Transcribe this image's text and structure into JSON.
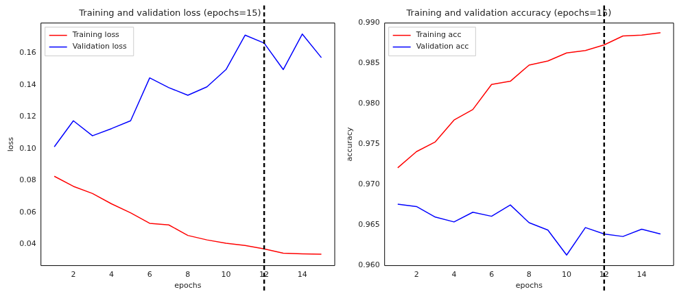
{
  "chart_data": [
    {
      "type": "line",
      "title": "Training and validation loss (epochs=15)",
      "xlabel": "epochs",
      "ylabel": "loss",
      "x": [
        1,
        2,
        3,
        4,
        5,
        6,
        7,
        8,
        9,
        10,
        11,
        12,
        13,
        14,
        15
      ],
      "xlim": [
        0.3,
        15.7
      ],
      "xticks": [
        2,
        4,
        6,
        8,
        10,
        12,
        14
      ],
      "ylim": [
        0.0266,
        0.1787
      ],
      "yticks": [
        0.04,
        0.06,
        0.08,
        {
          "value": 0.1,
          "label": "0.10"
        },
        {
          "value": 0.12,
          "label": "0.12"
        },
        0.14,
        0.16
      ],
      "grid": false,
      "legend": "top left",
      "marker": "none",
      "line_style": "solid",
      "series": [
        {
          "name": "Training loss",
          "color": "#ff0000",
          "values": [
            0.0826,
            0.0763,
            0.0718,
            0.0653,
            0.0597,
            0.0531,
            0.0521,
            0.0455,
            0.0427,
            0.0406,
            0.0392,
            0.0371,
            0.0344,
            0.034,
            0.0337
          ]
        },
        {
          "name": "Validation loss",
          "color": "#0000ff",
          "values": [
            0.1011,
            0.1174,
            0.108,
            0.1125,
            0.1174,
            0.1443,
            0.1382,
            0.1334,
            0.1387,
            0.1495,
            0.1711,
            0.1661,
            0.1495,
            0.1718,
            0.157
          ]
        }
      ],
      "ref_lines": [
        {
          "axis": "x",
          "value": 12,
          "color": "#000000",
          "line_style": "dashed"
        }
      ]
    },
    {
      "type": "line",
      "title": "Training and validation accuracy (epochs=15)",
      "xlabel": "epochs",
      "ylabel": "accuracy",
      "x": [
        1,
        2,
        3,
        4,
        5,
        6,
        7,
        8,
        9,
        10,
        11,
        12,
        13,
        14,
        15
      ],
      "xlim": [
        0.3,
        15.7
      ],
      "xticks": [
        2,
        4,
        6,
        8,
        10,
        12,
        14
      ],
      "ylim": [
        0.96,
        0.99
      ],
      "yticks": [
        {
          "value": 0.96,
          "label": "0.960"
        },
        0.965,
        {
          "value": 0.97,
          "label": "0.970"
        },
        0.975,
        {
          "value": 0.98,
          "label": "0.980"
        },
        0.985,
        {
          "value": 0.99,
          "label": "0.990"
        }
      ],
      "grid": false,
      "legend": "top left",
      "marker": "none",
      "line_style": "solid",
      "series": [
        {
          "name": "Training acc",
          "color": "#ff0000",
          "values": [
            0.9721,
            0.9741,
            0.9753,
            0.978,
            0.9793,
            0.9824,
            0.9828,
            0.9848,
            0.9853,
            0.9863,
            0.9866,
            0.9873,
            0.9884,
            0.9885,
            0.9888
          ]
        },
        {
          "name": "Validation acc",
          "color": "#0000ff",
          "values": [
            0.9676,
            0.9673,
            0.966,
            0.9654,
            0.9666,
            0.9661,
            0.9675,
            0.9653,
            0.9644,
            0.9613,
            0.9647,
            0.9639,
            0.9636,
            0.9645,
            0.9639
          ]
        }
      ],
      "ref_lines": [
        {
          "axis": "x",
          "value": 12,
          "color": "#000000",
          "line_style": "dashed"
        }
      ]
    }
  ]
}
